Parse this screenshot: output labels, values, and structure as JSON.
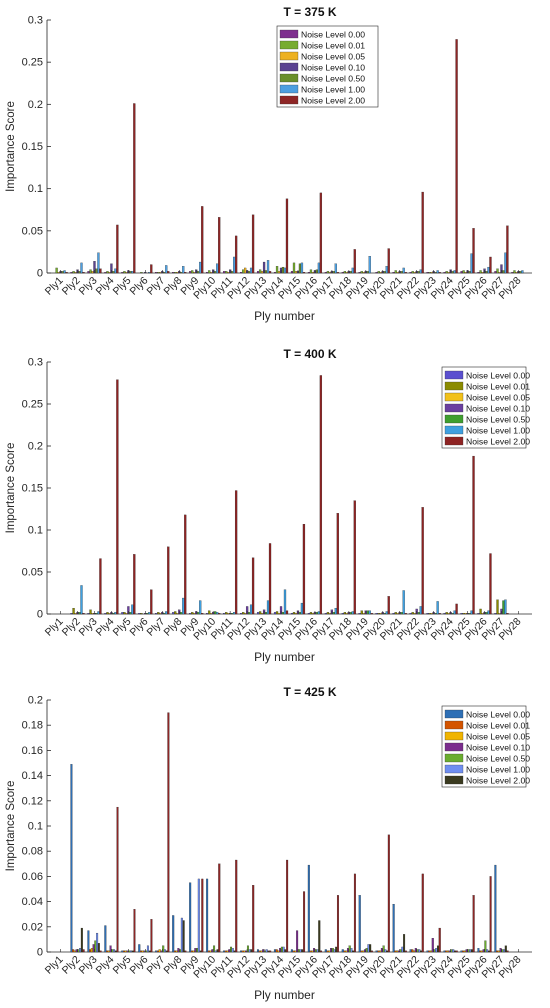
{
  "chart_data": [
    {
      "type": "bar",
      "title": "T = 375 K",
      "xlabel": "Ply number",
      "ylabel": "Importance Score",
      "ylim": [
        0,
        0.3
      ],
      "yticks": [
        0,
        0.05,
        0.1,
        0.15,
        0.2,
        0.25,
        0.3
      ],
      "ytick_labels": [
        "0",
        "0.05",
        "0.1",
        "0.15",
        "0.2",
        "0.25",
        "0.3"
      ],
      "legend_position": "top-right",
      "categories": [
        "Ply1",
        "Ply2",
        "Ply3",
        "Ply4",
        "Ply5",
        "Ply6",
        "Ply7",
        "Ply8",
        "Ply9",
        "Ply10",
        "Ply11",
        "Ply12",
        "Ply13",
        "Ply14",
        "Ply15",
        "Ply16",
        "Ply17",
        "Ply18",
        "Ply19",
        "Ply20",
        "Ply21",
        "Ply22",
        "Ply23",
        "Ply24",
        "Ply25",
        "Ply26",
        "Ply27",
        "Ply28"
      ],
      "series": [
        {
          "name": "Noise Level 0.00",
          "color": "#7e2f8e",
          "values": [
            0.0,
            0.001,
            0.002,
            0.001,
            0.001,
            0.0,
            0.001,
            0.001,
            0.002,
            0.001,
            0.002,
            0.001,
            0.002,
            0.001,
            0.002,
            0.001,
            0.001,
            0.001,
            0.001,
            0.001,
            0.001,
            0.001,
            0.001,
            0.001,
            0.002,
            0.001,
            0.002,
            0.001
          ]
        },
        {
          "name": "Noise Level 0.01",
          "color": "#77ac30",
          "values": [
            0.006,
            0.002,
            0.004,
            0.002,
            0.002,
            0.001,
            0.001,
            0.001,
            0.003,
            0.003,
            0.002,
            0.004,
            0.004,
            0.008,
            0.012,
            0.004,
            0.002,
            0.002,
            0.002,
            0.002,
            0.003,
            0.002,
            0.001,
            0.002,
            0.003,
            0.003,
            0.005,
            0.003
          ]
        },
        {
          "name": "Noise Level 0.05",
          "color": "#edb120",
          "values": [
            0.001,
            0.001,
            0.002,
            0.001,
            0.001,
            0.0,
            0.001,
            0.001,
            0.001,
            0.001,
            0.001,
            0.006,
            0.002,
            0.002,
            0.002,
            0.001,
            0.001,
            0.001,
            0.001,
            0.001,
            0.001,
            0.001,
            0.001,
            0.001,
            0.001,
            0.001,
            0.001,
            0.001
          ]
        },
        {
          "name": "Noise Level 0.10",
          "color": "#5a4391",
          "values": [
            0.002,
            0.004,
            0.014,
            0.011,
            0.003,
            0.001,
            0.002,
            0.002,
            0.004,
            0.004,
            0.004,
            0.003,
            0.013,
            0.006,
            0.002,
            0.003,
            0.002,
            0.002,
            0.002,
            0.002,
            0.002,
            0.002,
            0.002,
            0.004,
            0.003,
            0.005,
            0.01,
            0.002
          ]
        },
        {
          "name": "Noise Level 0.50",
          "color": "#6a8f2a",
          "values": [
            0.002,
            0.002,
            0.005,
            0.002,
            0.002,
            0.0,
            0.001,
            0.001,
            0.002,
            0.002,
            0.002,
            0.002,
            0.003,
            0.007,
            0.011,
            0.004,
            0.002,
            0.002,
            0.002,
            0.002,
            0.002,
            0.002,
            0.001,
            0.002,
            0.002,
            0.002,
            0.003,
            0.002
          ]
        },
        {
          "name": "Noise Level 1.00",
          "color": "#4d9fe0",
          "values": [
            0.003,
            0.012,
            0.024,
            0.005,
            0.002,
            0.001,
            0.009,
            0.008,
            0.013,
            0.011,
            0.019,
            0.006,
            0.015,
            0.006,
            0.012,
            0.012,
            0.011,
            0.006,
            0.02,
            0.008,
            0.006,
            0.004,
            0.003,
            0.003,
            0.023,
            0.007,
            0.024,
            0.003
          ]
        },
        {
          "name": "Noise Level 2.00",
          "color": "#8e2626",
          "values": [
            0.001,
            0.001,
            0.005,
            0.057,
            0.201,
            0.01,
            0.002,
            0.001,
            0.079,
            0.066,
            0.044,
            0.069,
            0.002,
            0.088,
            0.001,
            0.095,
            0.001,
            0.028,
            0.0,
            0.029,
            0.001,
            0.096,
            0.001,
            0.277,
            0.053,
            0.019,
            0.056,
            0.0
          ]
        }
      ]
    },
    {
      "type": "bar",
      "title": "T = 400 K",
      "xlabel": "Ply number",
      "ylabel": "Importance Score",
      "ylim": [
        0,
        0.3
      ],
      "yticks": [
        0,
        0.05,
        0.1,
        0.15,
        0.2,
        0.25,
        0.3
      ],
      "ytick_labels": [
        "0",
        "0.05",
        "0.1",
        "0.15",
        "0.2",
        "0.25",
        "0.3"
      ],
      "legend_position": "top-right",
      "categories": [
        "Ply1",
        "Ply2",
        "Ply3",
        "Ply4",
        "Ply5",
        "Ply6",
        "Ply7",
        "Ply8",
        "Ply9",
        "Ply10",
        "Ply11",
        "Ply12",
        "Ply13",
        "Ply14",
        "Ply15",
        "Ply16",
        "Ply17",
        "Ply18",
        "Ply19",
        "Ply20",
        "Ply21",
        "Ply22",
        "Ply23",
        "Ply24",
        "Ply25",
        "Ply26",
        "Ply27",
        "Ply28"
      ],
      "series": [
        {
          "name": "Noise Level 0.00",
          "color": "#5a4fcf",
          "values": [
            0.0,
            0.001,
            0.001,
            0.001,
            0.002,
            0.001,
            0.001,
            0.002,
            0.001,
            0.001,
            0.001,
            0.001,
            0.002,
            0.002,
            0.001,
            0.001,
            0.001,
            0.001,
            0.001,
            0.001,
            0.001,
            0.001,
            0.001,
            0.001,
            0.001,
            0.001,
            0.001,
            0.0
          ]
        },
        {
          "name": "Noise Level 0.01",
          "color": "#8b8b00",
          "values": [
            0.0,
            0.007,
            0.005,
            0.002,
            0.002,
            0.001,
            0.002,
            0.003,
            0.002,
            0.004,
            0.002,
            0.002,
            0.003,
            0.003,
            0.002,
            0.002,
            0.002,
            0.002,
            0.004,
            0.001,
            0.002,
            0.002,
            0.001,
            0.002,
            0.001,
            0.006,
            0.017,
            0.0
          ]
        },
        {
          "name": "Noise Level 0.05",
          "color": "#f2c11b",
          "values": [
            0.0,
            0.001,
            0.001,
            0.001,
            0.001,
            0.0,
            0.001,
            0.001,
            0.001,
            0.001,
            0.001,
            0.001,
            0.001,
            0.001,
            0.001,
            0.001,
            0.001,
            0.001,
            0.001,
            0.001,
            0.001,
            0.001,
            0.001,
            0.001,
            0.001,
            0.001,
            0.001,
            0.0
          ]
        },
        {
          "name": "Noise Level 0.10",
          "color": "#6b3fa0",
          "values": [
            0.0,
            0.002,
            0.001,
            0.002,
            0.009,
            0.001,
            0.002,
            0.005,
            0.003,
            0.002,
            0.001,
            0.009,
            0.005,
            0.009,
            0.004,
            0.002,
            0.005,
            0.002,
            0.004,
            0.002,
            0.002,
            0.006,
            0.002,
            0.002,
            0.001,
            0.002,
            0.006,
            0.0
          ]
        },
        {
          "name": "Noise Level 0.50",
          "color": "#3f9f2f",
          "values": [
            0.0,
            0.002,
            0.001,
            0.001,
            0.002,
            0.001,
            0.001,
            0.002,
            0.002,
            0.003,
            0.001,
            0.002,
            0.002,
            0.002,
            0.002,
            0.002,
            0.002,
            0.002,
            0.004,
            0.001,
            0.002,
            0.002,
            0.001,
            0.001,
            0.001,
            0.002,
            0.016,
            0.0
          ]
        },
        {
          "name": "Noise Level 1.00",
          "color": "#3fa0e0",
          "values": [
            0.0,
            0.034,
            0.003,
            0.002,
            0.011,
            0.002,
            0.003,
            0.019,
            0.016,
            0.002,
            0.002,
            0.011,
            0.016,
            0.029,
            0.013,
            0.003,
            0.007,
            0.003,
            0.004,
            0.003,
            0.028,
            0.009,
            0.015,
            0.004,
            0.004,
            0.004,
            0.017,
            0.0
          ]
        },
        {
          "name": "Noise Level 2.00",
          "color": "#8e2323",
          "values": [
            0.0,
            0.001,
            0.066,
            0.279,
            0.071,
            0.029,
            0.08,
            0.118,
            0.001,
            0.001,
            0.147,
            0.067,
            0.084,
            0.004,
            0.107,
            0.284,
            0.12,
            0.135,
            0.001,
            0.021,
            0.001,
            0.127,
            0.001,
            0.012,
            0.188,
            0.072,
            0.001,
            0.0
          ]
        }
      ]
    },
    {
      "type": "bar",
      "title": "T = 425 K",
      "xlabel": "Ply number",
      "ylabel": "Importance Score",
      "ylim": [
        0,
        0.2
      ],
      "yticks": [
        0,
        0.02,
        0.04,
        0.06,
        0.08,
        0.1,
        0.12,
        0.14,
        0.16,
        0.18,
        0.2
      ],
      "ytick_labels": [
        "0",
        "0.02",
        "0.04",
        "0.06",
        "0.08",
        "0.1",
        "0.12",
        "0.14",
        "0.16",
        "0.18",
        "0.2"
      ],
      "legend_position": "top-right",
      "categories": [
        "Ply1",
        "Ply2",
        "Ply3",
        "Ply4",
        "Ply5",
        "Ply6",
        "Ply7",
        "Ply8",
        "Ply9",
        "Ply10",
        "Ply11",
        "Ply12",
        "Ply13",
        "Ply14",
        "Ply15",
        "Ply16",
        "Ply17",
        "Ply18",
        "Ply19",
        "Ply20",
        "Ply21",
        "Ply22",
        "Ply23",
        "Ply24",
        "Ply25",
        "Ply26",
        "Ply27",
        "Ply28"
      ],
      "series": [
        {
          "name": "Noise Level 0.00",
          "color": "#2e6fb5",
          "values": [
            0.0,
            0.149,
            0.017,
            0.021,
            0.001,
            0.006,
            0.001,
            0.029,
            0.055,
            0.058,
            0.001,
            0.001,
            0.002,
            0.002,
            0.002,
            0.069,
            0.002,
            0.002,
            0.045,
            0.001,
            0.038,
            0.002,
            0.001,
            0.001,
            0.001,
            0.003,
            0.069,
            0.0
          ]
        },
        {
          "name": "Noise Level 0.01",
          "color": "#d35400",
          "values": [
            0.0,
            0.002,
            0.002,
            0.001,
            0.001,
            0.001,
            0.001,
            0.001,
            0.001,
            0.001,
            0.001,
            0.001,
            0.001,
            0.002,
            0.001,
            0.001,
            0.001,
            0.001,
            0.001,
            0.001,
            0.001,
            0.002,
            0.001,
            0.001,
            0.001,
            0.001,
            0.001,
            0.0
          ]
        },
        {
          "name": "Noise Level 0.05",
          "color": "#f0b400",
          "values": [
            0.0,
            0.001,
            0.003,
            0.001,
            0.001,
            0.001,
            0.002,
            0.001,
            0.001,
            0.001,
            0.001,
            0.001,
            0.001,
            0.001,
            0.001,
            0.001,
            0.001,
            0.001,
            0.001,
            0.001,
            0.001,
            0.001,
            0.001,
            0.001,
            0.001,
            0.001,
            0.001,
            0.0
          ]
        },
        {
          "name": "Noise Level 0.10",
          "color": "#7b2d8e",
          "values": [
            0.0,
            0.002,
            0.006,
            0.005,
            0.001,
            0.001,
            0.001,
            0.003,
            0.003,
            0.002,
            0.002,
            0.001,
            0.002,
            0.003,
            0.017,
            0.003,
            0.003,
            0.003,
            0.002,
            0.003,
            0.001,
            0.003,
            0.011,
            0.001,
            0.002,
            0.002,
            0.003,
            0.0
          ]
        },
        {
          "name": "Noise Level 0.50",
          "color": "#6aad2e",
          "values": [
            0.0,
            0.002,
            0.009,
            0.002,
            0.001,
            0.001,
            0.005,
            0.002,
            0.003,
            0.005,
            0.004,
            0.005,
            0.001,
            0.004,
            0.002,
            0.002,
            0.003,
            0.005,
            0.003,
            0.005,
            0.002,
            0.002,
            0.002,
            0.002,
            0.002,
            0.009,
            0.002,
            0.0
          ]
        },
        {
          "name": "Noise Level 1.00",
          "color": "#6f8ef0",
          "values": [
            0.0,
            0.003,
            0.015,
            0.002,
            0.001,
            0.005,
            0.002,
            0.027,
            0.058,
            0.001,
            0.003,
            0.002,
            0.002,
            0.004,
            0.002,
            0.002,
            0.002,
            0.003,
            0.006,
            0.002,
            0.004,
            0.002,
            0.003,
            0.002,
            0.002,
            0.002,
            0.002,
            0.0
          ]
        },
        {
          "name": "Noise Level 2.00",
          "color": "#3a3a1f",
          "values": [
            0.0,
            0.019,
            0.007,
            0.001,
            0.001,
            0.001,
            0.001,
            0.025,
            0.001,
            0.002,
            0.001,
            0.002,
            0.001,
            0.002,
            0.002,
            0.025,
            0.004,
            0.001,
            0.006,
            0.001,
            0.014,
            0.001,
            0.005,
            0.001,
            0.002,
            0.001,
            0.005,
            0.0
          ]
        },
        {
          "name": "",
          "color": "#8e2626",
          "values": [
            0.0,
            0.002,
            0.001,
            0.115,
            0.034,
            0.026,
            0.19,
            0.001,
            0.058,
            0.07,
            0.073,
            0.053,
            0.001,
            0.073,
            0.048,
            0.001,
            0.045,
            0.062,
            0.001,
            0.093,
            0.001,
            0.062,
            0.019,
            0.001,
            0.045,
            0.06,
            0.001,
            0.0
          ]
        }
      ]
    }
  ]
}
